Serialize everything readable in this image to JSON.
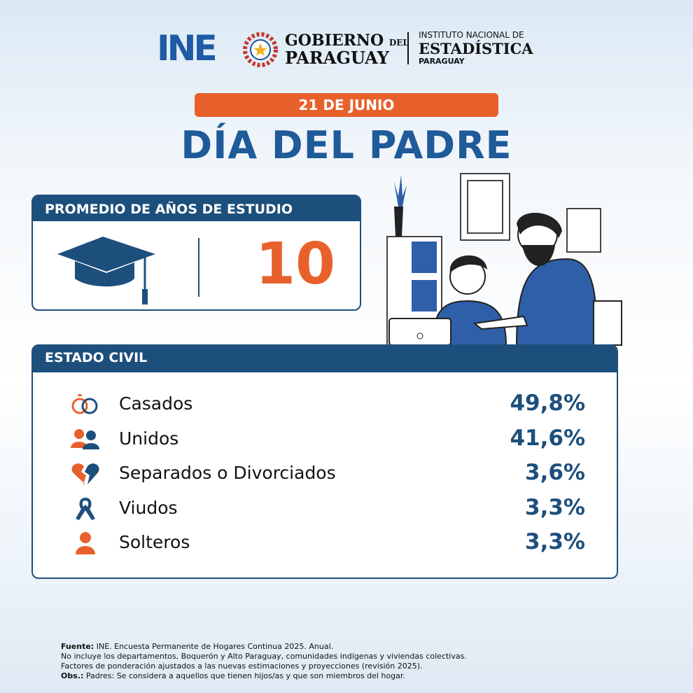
{
  "header": {
    "ine_logo": "INE",
    "gobierno": "GOBIERNO",
    "del": "DEL",
    "paraguay": "PARAGUAY",
    "instituto": "INSTITUTO NACIONAL DE",
    "estadistica": "ESTADÍSTICA",
    "instituto_pais": "PARAGUAY"
  },
  "date": "21 DE JUNIO",
  "title": "DÍA DEL PADRE",
  "study": {
    "title": "PROMEDIO DE AÑOS DE ESTUDIO",
    "value": "10"
  },
  "civil": {
    "title": "ESTADO CIVIL",
    "rows": [
      {
        "label": "Casados",
        "value": "49,8%"
      },
      {
        "label": "Unidos",
        "value": "41,6%"
      },
      {
        "label": "Separados o Divorciados",
        "value": "3,6%"
      },
      {
        "label": "Viudos",
        "value": "3,3%"
      },
      {
        "label": "Solteros",
        "value": "3,3%"
      }
    ]
  },
  "footer": [
    {
      "label": "Fuente:",
      "text": "INE. Encuesta Permanente de Hogares Continua 2025. Anual."
    },
    {
      "text": "No incluye los departamentos, Boquerón y Alto Paraguay, comunidades indígenas y viviendas colectivas."
    },
    {
      "text": "Factores de ponderación ajustados a las nuevas estimaciones y proyecciones (revisión 2025)."
    },
    {
      "label": "Obs.:",
      "text": "Padres: Se considera a aquellos que tienen hijos/as y que son miembros del hogar."
    }
  ]
}
